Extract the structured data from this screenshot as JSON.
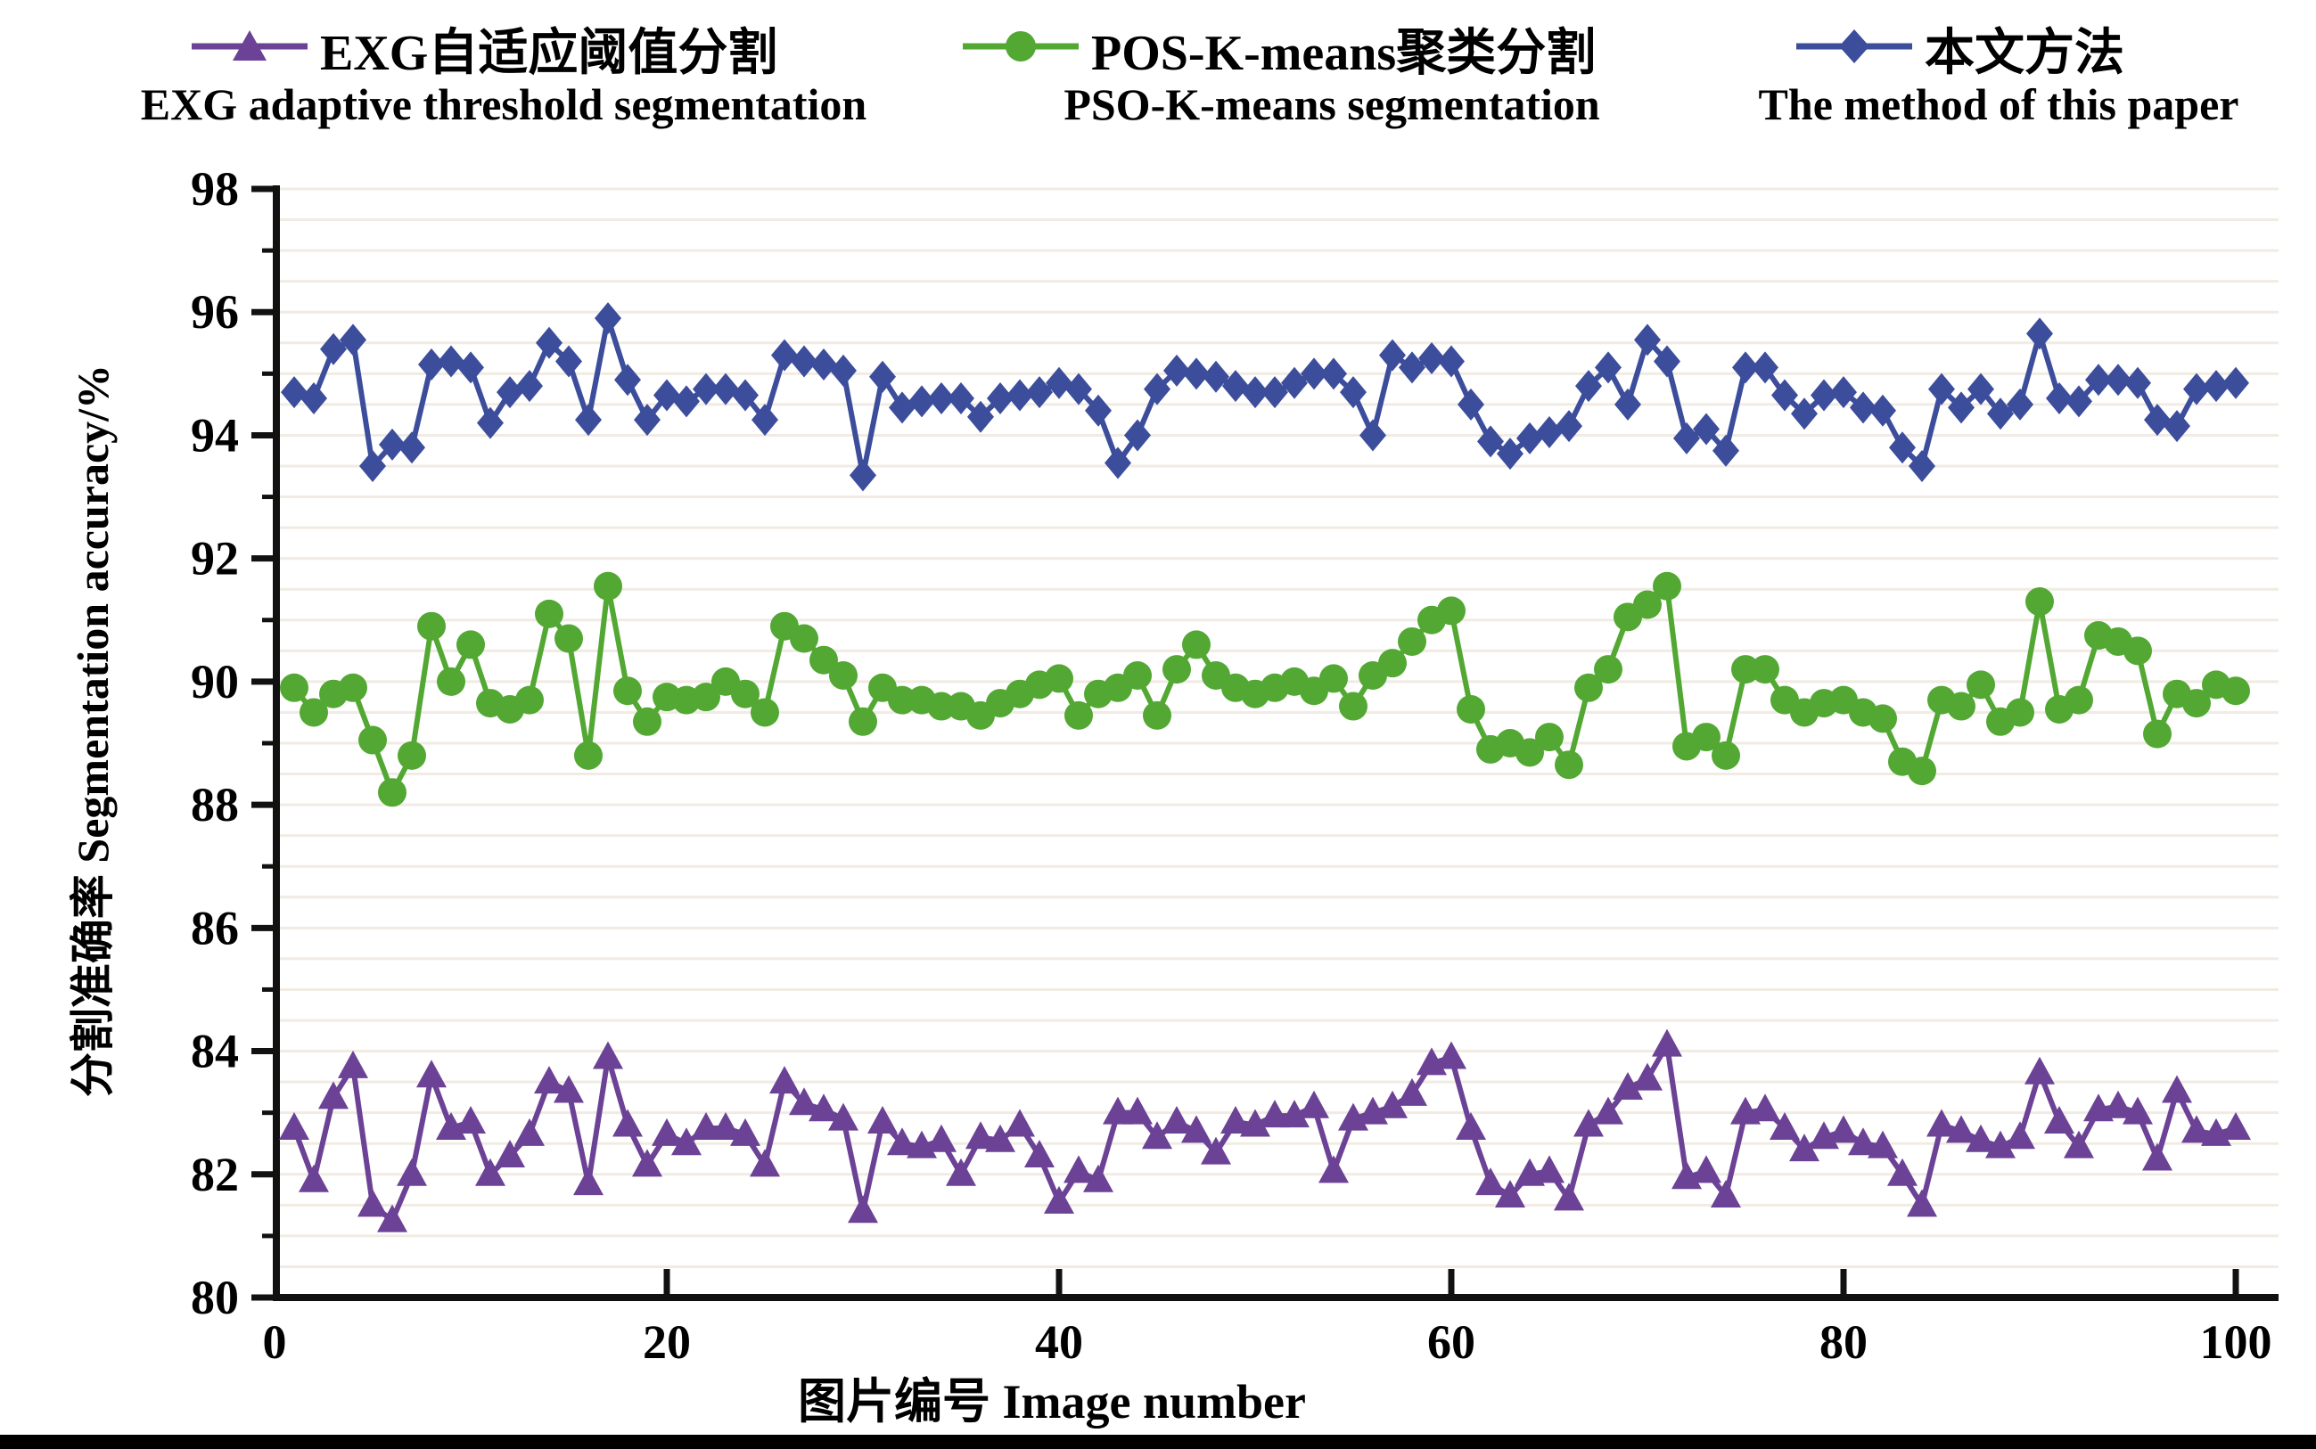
{
  "legend": {
    "row1": [
      {
        "label": "EXG自适应阈值分割",
        "marker": "triangle",
        "color": "#6b4295"
      },
      {
        "label": "POS-K-means聚类分割",
        "marker": "circle",
        "color": "#52a833"
      },
      {
        "label": "本文方法",
        "marker": "diamond",
        "color": "#3c4d9c"
      }
    ],
    "row2": [
      "EXG adaptive threshold segmentation",
      "PSO-K-means segmentation",
      "The method of this paper"
    ]
  },
  "axes": {
    "x_title": "图片编号 Image number",
    "y_title": "分割准确率 Segmentation accuracy/%"
  },
  "chart_data": {
    "type": "line",
    "title": "",
    "xlabel": "图片编号 Image number",
    "ylabel": "分割准确率 Segmentation accuracy/%",
    "xlim": [
      0,
      100
    ],
    "ylim": [
      80,
      98
    ],
    "x_ticks": [
      0,
      20,
      40,
      60,
      80,
      100
    ],
    "y_ticks": [
      80,
      82,
      84,
      86,
      88,
      90,
      92,
      94,
      96,
      98
    ],
    "grid": "horizontal, every 0.5, light beige",
    "legend_position": "top",
    "x_start": 1,
    "x_step": 1,
    "n_points": 100,
    "series": [
      {
        "name": "EXG自适应阈值分割",
        "name_en": "EXG adaptive threshold segmentation",
        "marker": "triangle",
        "color": "#6b4295",
        "values": [
          82.75,
          81.9,
          83.25,
          83.75,
          81.5,
          81.25,
          82.0,
          83.6,
          82.75,
          82.85,
          82.0,
          82.3,
          82.65,
          83.5,
          83.35,
          81.85,
          83.9,
          82.8,
          82.15,
          82.65,
          82.5,
          82.75,
          82.75,
          82.65,
          82.15,
          83.5,
          83.15,
          83.05,
          82.9,
          81.4,
          82.85,
          82.5,
          82.45,
          82.55,
          82.0,
          82.6,
          82.55,
          82.8,
          82.3,
          81.55,
          82.05,
          81.9,
          83.0,
          83.0,
          82.6,
          82.85,
          82.7,
          82.35,
          82.85,
          82.8,
          82.95,
          82.95,
          83.1,
          82.05,
          82.9,
          83.0,
          83.1,
          83.3,
          83.8,
          83.9,
          82.75,
          81.85,
          81.65,
          82.0,
          82.05,
          81.6,
          82.8,
          83.0,
          83.4,
          83.55,
          84.1,
          81.95,
          82.05,
          81.65,
          83.0,
          83.05,
          82.75,
          82.4,
          82.6,
          82.7,
          82.5,
          82.45,
          82.0,
          81.5,
          82.8,
          82.7,
          82.55,
          82.45,
          82.6,
          83.65,
          82.85,
          82.45,
          83.05,
          83.1,
          83.0,
          82.25,
          83.35,
          82.7,
          82.65,
          82.75
        ]
      },
      {
        "name": "POS-K-means聚类分割",
        "name_en": "PSO-K-means segmentation",
        "marker": "circle",
        "color": "#52a833",
        "values": [
          89.9,
          89.5,
          89.8,
          89.9,
          89.05,
          88.2,
          88.8,
          90.9,
          90.0,
          90.6,
          89.65,
          89.55,
          89.7,
          91.1,
          90.7,
          88.8,
          91.55,
          89.85,
          89.35,
          89.75,
          89.7,
          89.75,
          90.0,
          89.8,
          89.5,
          90.9,
          90.7,
          90.35,
          90.1,
          89.35,
          89.9,
          89.7,
          89.7,
          89.6,
          89.6,
          89.45,
          89.65,
          89.8,
          89.95,
          90.05,
          89.45,
          89.8,
          89.9,
          90.1,
          89.45,
          90.2,
          90.6,
          90.1,
          89.9,
          89.8,
          89.9,
          90.0,
          89.85,
          90.05,
          89.6,
          90.1,
          90.3,
          90.65,
          91.0,
          91.15,
          89.55,
          88.9,
          89.0,
          88.85,
          89.1,
          88.65,
          89.9,
          90.2,
          91.05,
          91.25,
          91.55,
          88.95,
          89.1,
          88.8,
          90.2,
          90.2,
          89.7,
          89.5,
          89.65,
          89.7,
          89.5,
          89.4,
          88.7,
          88.55,
          89.7,
          89.6,
          89.95,
          89.35,
          89.5,
          91.3,
          89.55,
          89.7,
          90.75,
          90.65,
          90.5,
          89.15,
          89.8,
          89.65,
          89.95,
          89.85
        ]
      },
      {
        "name": "本文方法",
        "name_en": "The method of this paper",
        "marker": "diamond",
        "color": "#3c4d9c",
        "values": [
          94.7,
          94.6,
          95.4,
          95.55,
          93.5,
          93.85,
          93.8,
          95.15,
          95.2,
          95.1,
          94.2,
          94.7,
          94.8,
          95.5,
          95.2,
          94.25,
          95.9,
          94.9,
          94.25,
          94.65,
          94.55,
          94.75,
          94.75,
          94.65,
          94.25,
          95.3,
          95.2,
          95.15,
          95.05,
          93.35,
          94.95,
          94.45,
          94.55,
          94.6,
          94.6,
          94.3,
          94.6,
          94.65,
          94.7,
          94.85,
          94.75,
          94.4,
          93.55,
          94.0,
          94.75,
          95.05,
          95.0,
          94.95,
          94.8,
          94.7,
          94.7,
          94.85,
          95.0,
          95.0,
          94.7,
          94.0,
          95.3,
          95.1,
          95.25,
          95.2,
          94.5,
          93.9,
          93.7,
          93.95,
          94.05,
          94.15,
          94.8,
          95.1,
          94.5,
          95.55,
          95.2,
          93.95,
          94.1,
          93.75,
          95.1,
          95.1,
          94.65,
          94.35,
          94.65,
          94.7,
          94.45,
          94.4,
          93.8,
          93.5,
          94.75,
          94.45,
          94.75,
          94.35,
          94.5,
          95.65,
          94.6,
          94.55,
          94.9,
          94.9,
          94.85,
          94.25,
          94.15,
          94.75,
          94.8,
          94.85
        ]
      }
    ],
    "style": {
      "gridline_color": "#f1ebe3",
      "axis_color": "#111111",
      "background": "#ffffff"
    }
  }
}
